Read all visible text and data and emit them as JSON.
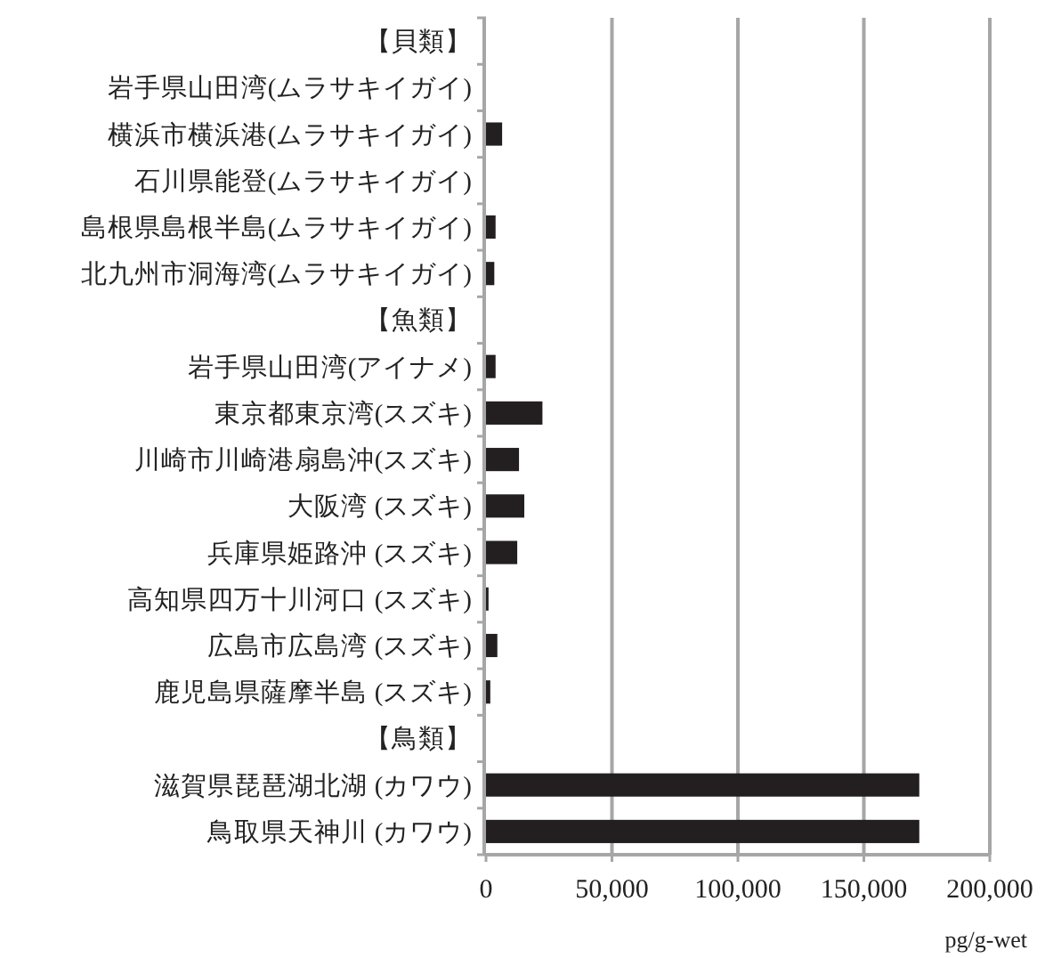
{
  "chart_data": {
    "type": "bar",
    "orientation": "horizontal",
    "xlabel": "pg/g-wet",
    "categories": [
      "【貝類】",
      "岩手県山田湾(ムラサキイガイ)",
      "横浜市横浜港(ムラサキイガイ)",
      "石川県能登(ムラサキイガイ)",
      "島根県島根半島(ムラサキイガイ)",
      "北九州市洞海湾(ムラサキイガイ)",
      "【魚類】",
      "岩手県山田湾(アイナメ)",
      "東京都東京湾(スズキ)",
      "川崎市川崎港扇島沖(スズキ)",
      "大阪湾 (スズキ)",
      "兵庫県姫路沖 (スズキ)",
      "高知県四万十川河口 (スズキ)",
      "広島市広島湾 (スズキ)",
      "鹿児島県薩摩半島 (スズキ)",
      "【鳥類】",
      "滋賀県琵琶湖北湖 (カワウ)",
      "鳥取県天神川 (カワウ)"
    ],
    "values": [
      null,
      null,
      6400,
      null,
      3800,
      3300,
      null,
      3800,
      22400,
      13100,
      15200,
      12400,
      1000,
      4500,
      1700,
      null,
      172000,
      172000
    ],
    "color": "#231f20",
    "xlim": [
      0,
      200000
    ],
    "xticks": [
      {
        "value": 0,
        "label": "0"
      },
      {
        "value": 50000,
        "label": "50,000"
      },
      {
        "value": 100000,
        "label": "100,000"
      },
      {
        "value": 150000,
        "label": "150,000"
      },
      {
        "value": 200000,
        "label": "200,000"
      }
    ],
    "grid": "x"
  }
}
